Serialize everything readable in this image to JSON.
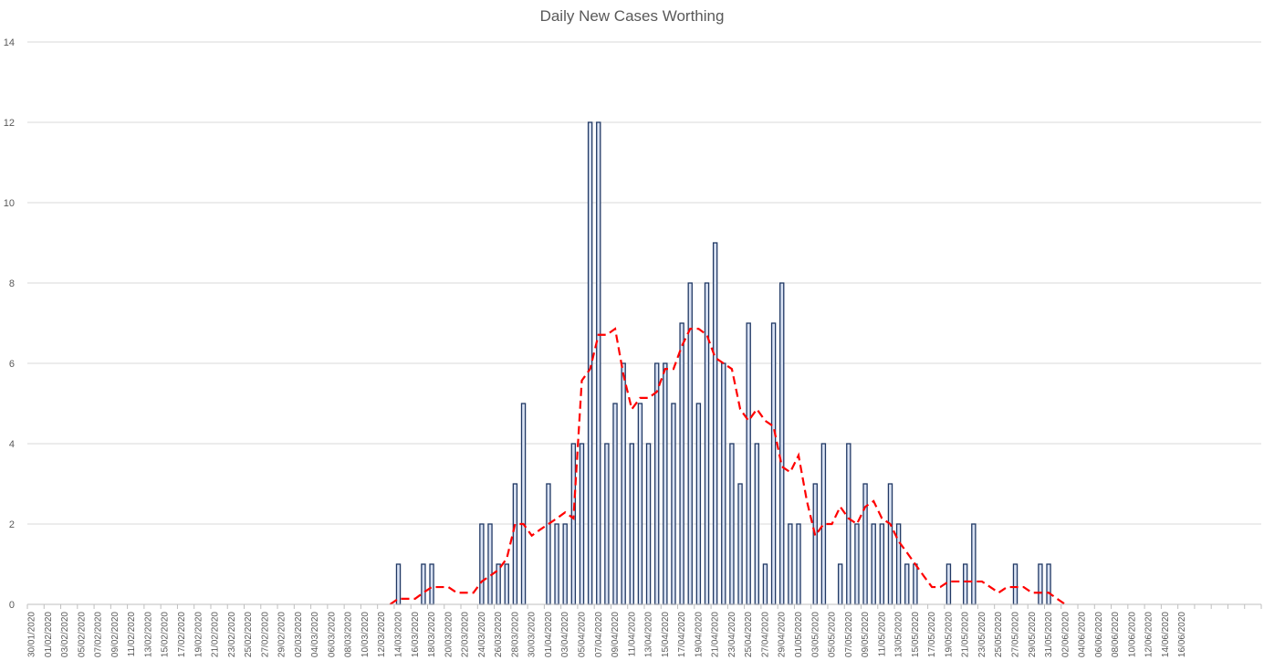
{
  "chart_data": {
    "type": "bar",
    "title": "Daily New Cases Worthing",
    "xlabel": "",
    "ylabel": "",
    "ylim": [
      0,
      14
    ],
    "yticks": [
      0,
      2,
      4,
      6,
      8,
      10,
      12,
      14
    ],
    "grid": true,
    "x_tick_labels": [
      "30/01/2020",
      "01/02/2020",
      "03/02/2020",
      "05/02/2020",
      "07/02/2020",
      "09/02/2020",
      "11/02/2020",
      "13/02/2020",
      "15/02/2020",
      "17/02/2020",
      "19/02/2020",
      "21/02/2020",
      "23/02/2020",
      "25/02/2020",
      "27/02/2020",
      "29/02/2020",
      "02/03/2020",
      "04/03/2020",
      "06/03/2020",
      "08/03/2020",
      "10/03/2020",
      "12/03/2020",
      "14/03/2020",
      "16/03/2020",
      "18/03/2020",
      "20/03/2020",
      "22/03/2020",
      "24/03/2020",
      "26/03/2020",
      "28/03/2020",
      "30/03/2020",
      "01/04/2020",
      "03/04/2020",
      "05/04/2020",
      "07/04/2020",
      "09/04/2020",
      "11/04/2020",
      "13/04/2020",
      "15/04/2020",
      "17/04/2020",
      "19/04/2020",
      "21/04/2020",
      "23/04/2020",
      "25/04/2020",
      "27/04/2020",
      "29/04/2020",
      "01/05/2020",
      "03/05/2020",
      "05/05/2020",
      "07/05/2020",
      "09/05/2020",
      "11/05/2020",
      "13/05/2020",
      "15/05/2020",
      "17/05/2020",
      "19/05/2020",
      "21/05/2020",
      "23/05/2020",
      "25/05/2020",
      "27/05/2020",
      "29/05/2020",
      "31/05/2020",
      "02/06/2020",
      "04/06/2020",
      "06/06/2020",
      "08/06/2020",
      "10/06/2020",
      "12/06/2020",
      "14/06/2020",
      "16/06/2020"
    ],
    "series": [
      {
        "type": "bar",
        "color": "#203864",
        "values": [
          0,
          0,
          0,
          0,
          0,
          0,
          0,
          0,
          0,
          0,
          0,
          0,
          0,
          0,
          0,
          0,
          0,
          0,
          0,
          0,
          0,
          0,
          0,
          0,
          0,
          0,
          0,
          0,
          0,
          0,
          0,
          0,
          0,
          0,
          0,
          0,
          0,
          0,
          0,
          0,
          0,
          0,
          0,
          0,
          1,
          0,
          0,
          1,
          1,
          0,
          0,
          0,
          0,
          0,
          2,
          2,
          1,
          1,
          3,
          5,
          0,
          0,
          3,
          2,
          2,
          4,
          4,
          12,
          12,
          4,
          5,
          6,
          4,
          5,
          4,
          6,
          6,
          5,
          7,
          8,
          5,
          8,
          9,
          6,
          4,
          3,
          7,
          4,
          1,
          7,
          8,
          2,
          2,
          0,
          3,
          4,
          0,
          1,
          4,
          2,
          3,
          2,
          2,
          3,
          2,
          1,
          1,
          0,
          0,
          0,
          1,
          0,
          1,
          2,
          0,
          0,
          0,
          0,
          1,
          0,
          0,
          1,
          1,
          0,
          0,
          0,
          0,
          0,
          0,
          0,
          0,
          0,
          0,
          0,
          0,
          0,
          0,
          0,
          0,
          0,
          0,
          0,
          0,
          0,
          0,
          0,
          0,
          0
        ]
      },
      {
        "type": "line",
        "style": "dashed",
        "color": "#ff0000",
        "values": [
          null,
          null,
          null,
          null,
          null,
          null,
          null,
          null,
          null,
          null,
          null,
          null,
          null,
          null,
          null,
          null,
          null,
          null,
          null,
          null,
          null,
          null,
          null,
          null,
          null,
          null,
          null,
          null,
          null,
          null,
          null,
          null,
          null,
          null,
          null,
          null,
          null,
          null,
          null,
          null,
          null,
          null,
          null,
          0,
          0.14,
          0.14,
          0.14,
          0.29,
          0.43,
          0.43,
          0.43,
          0.29,
          0.29,
          0.29,
          0.57,
          0.71,
          0.86,
          1.14,
          2.0,
          2.0,
          1.71,
          1.86,
          2.0,
          2.14,
          2.29,
          2.14,
          5.57,
          5.86,
          6.71,
          6.71,
          6.86,
          5.71,
          4.86,
          5.14,
          5.14,
          5.29,
          5.86,
          5.86,
          6.43,
          6.86,
          6.86,
          6.71,
          6.14,
          6.0,
          5.86,
          4.86,
          4.57,
          4.86,
          4.57,
          4.43,
          3.43,
          3.29,
          3.71,
          2.57,
          1.71,
          2.0,
          2.0,
          2.43,
          2.14,
          2.0,
          2.43,
          2.57,
          2.14,
          2.0,
          1.57,
          1.29,
          1.0,
          0.71,
          0.43,
          0.43,
          0.57,
          0.57,
          0.57,
          0.57,
          0.57,
          0.43,
          0.29,
          0.43,
          0.43,
          0.43,
          0.29,
          0.29,
          0.29,
          0.14,
          0
        ]
      }
    ]
  }
}
